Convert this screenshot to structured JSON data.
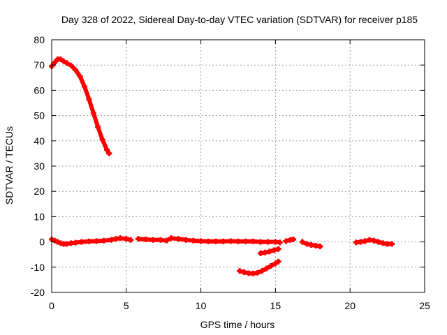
{
  "chart_data": {
    "type": "scatter",
    "title": "Day 328 of 2022, Sidereal Day-to-day VTEC variation (SDTVAR) for receiver p185",
    "xlabel": "GPS time / hours",
    "ylabel": "SDTVAR / TECUs",
    "xlim": [
      0,
      25
    ],
    "ylim": [
      -20,
      80
    ],
    "xticks": [
      0,
      5,
      10,
      15,
      20,
      25
    ],
    "yticks": [
      -20,
      -10,
      0,
      10,
      20,
      30,
      40,
      50,
      60,
      70,
      80
    ],
    "grid": true,
    "series_color": "#ff0000",
    "series": [
      {
        "name": "early-high",
        "points": [
          [
            0.0,
            69.5
          ],
          [
            0.2,
            71.0
          ],
          [
            0.4,
            72.3
          ],
          [
            0.6,
            72.3
          ],
          [
            0.8,
            71.5
          ],
          [
            1.0,
            70.8
          ],
          [
            1.3,
            69.8
          ],
          [
            1.6,
            68.0
          ],
          [
            1.9,
            65.5
          ],
          [
            2.2,
            61.5
          ],
          [
            2.5,
            56.5
          ],
          [
            2.8,
            51.0
          ],
          [
            3.1,
            45.5
          ],
          [
            3.4,
            40.5
          ],
          [
            3.7,
            36.5
          ],
          [
            3.85,
            35.0
          ]
        ]
      },
      {
        "name": "baseline-1",
        "points": [
          [
            0.0,
            1.0
          ],
          [
            0.2,
            0.5
          ],
          [
            0.4,
            0.0
          ],
          [
            0.6,
            -0.5
          ],
          [
            0.8,
            -0.8
          ],
          [
            1.0,
            -0.8
          ],
          [
            1.3,
            -0.5
          ],
          [
            1.6,
            -0.3
          ],
          [
            2.0,
            0.0
          ],
          [
            2.5,
            0.2
          ],
          [
            3.0,
            0.3
          ],
          [
            3.5,
            0.5
          ],
          [
            4.0,
            0.8
          ],
          [
            4.3,
            1.2
          ],
          [
            4.6,
            1.5
          ],
          [
            5.0,
            1.2
          ],
          [
            5.3,
            0.8
          ]
        ]
      },
      {
        "name": "baseline-2",
        "points": [
          [
            5.8,
            1.2
          ],
          [
            6.3,
            1.0
          ],
          [
            6.8,
            0.8
          ],
          [
            7.3,
            0.8
          ],
          [
            7.7,
            0.5
          ],
          [
            8.0,
            1.5
          ],
          [
            8.5,
            1.2
          ],
          [
            9.0,
            0.8
          ],
          [
            9.5,
            0.5
          ],
          [
            10.0,
            0.3
          ],
          [
            10.5,
            0.2
          ],
          [
            11.0,
            0.2
          ],
          [
            11.5,
            0.2
          ],
          [
            12.0,
            0.3
          ],
          [
            12.5,
            0.2
          ],
          [
            13.0,
            0.2
          ],
          [
            13.5,
            0.2
          ],
          [
            14.0,
            0.0
          ],
          [
            14.5,
            0.0
          ],
          [
            15.0,
            0.0
          ],
          [
            15.3,
            -0.2
          ]
        ]
      },
      {
        "name": "baseline-3",
        "points": [
          [
            15.7,
            0.3
          ],
          [
            16.0,
            0.8
          ],
          [
            16.2,
            1.0
          ]
        ]
      },
      {
        "name": "baseline-4",
        "points": [
          [
            16.8,
            0.0
          ],
          [
            17.1,
            -0.8
          ],
          [
            17.4,
            -1.2
          ],
          [
            17.7,
            -1.5
          ],
          [
            18.0,
            -1.8
          ]
        ]
      },
      {
        "name": "baseline-5",
        "points": [
          [
            20.4,
            -0.2
          ],
          [
            20.7,
            0.0
          ],
          [
            21.0,
            0.3
          ],
          [
            21.3,
            0.8
          ],
          [
            21.6,
            0.5
          ],
          [
            21.9,
            0.0
          ],
          [
            22.2,
            -0.5
          ],
          [
            22.5,
            -0.8
          ],
          [
            22.8,
            -0.8
          ]
        ]
      },
      {
        "name": "negative-arc",
        "points": [
          [
            12.6,
            -11.5
          ],
          [
            12.9,
            -12.0
          ],
          [
            13.2,
            -12.4
          ],
          [
            13.5,
            -12.5
          ],
          [
            13.8,
            -12.2
          ],
          [
            14.1,
            -11.5
          ],
          [
            14.4,
            -10.5
          ],
          [
            14.7,
            -9.5
          ],
          [
            15.0,
            -8.5
          ],
          [
            15.2,
            -7.8
          ]
        ]
      },
      {
        "name": "short-segment",
        "points": [
          [
            14.0,
            -4.5
          ],
          [
            14.3,
            -4.2
          ],
          [
            14.6,
            -3.8
          ],
          [
            14.9,
            -3.3
          ],
          [
            15.2,
            -2.8
          ]
        ]
      }
    ]
  }
}
